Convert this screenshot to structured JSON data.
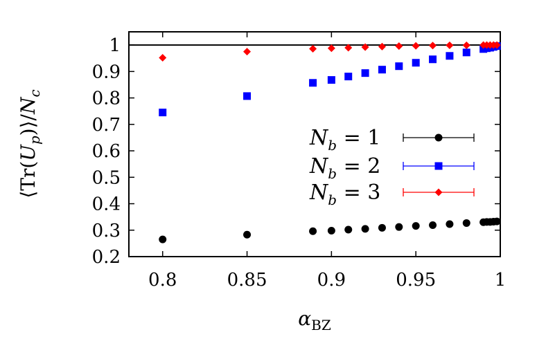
{
  "chart_data": {
    "type": "scatter",
    "xlabel": "α_BZ",
    "ylabel": "⟨Tr(U_p)⟩/N_c",
    "xlim": [
      0.78,
      1.0
    ],
    "ylim": [
      0.2,
      1.05
    ],
    "x_ticks": [
      "0.8",
      "0.85",
      "0.9",
      "0.95",
      "1"
    ],
    "y_ticks": [
      "0.2",
      "0.3",
      "0.4",
      "0.5",
      "0.6",
      "0.7",
      "0.8",
      "0.9",
      "1"
    ],
    "reference_line_y": 1.0,
    "grid": false,
    "legend_position": "center-right",
    "series": [
      {
        "name": "N_b = 1",
        "color": "#000000",
        "marker": "circle",
        "points": [
          [
            0.8,
            0.265
          ],
          [
            0.85,
            0.283
          ],
          [
            0.889,
            0.296
          ],
          [
            0.9,
            0.298
          ],
          [
            0.91,
            0.302
          ],
          [
            0.92,
            0.305
          ],
          [
            0.93,
            0.309
          ],
          [
            0.94,
            0.312
          ],
          [
            0.95,
            0.316
          ],
          [
            0.96,
            0.319
          ],
          [
            0.97,
            0.323
          ],
          [
            0.98,
            0.327
          ],
          [
            0.99,
            0.33
          ],
          [
            0.992,
            0.331
          ],
          [
            0.994,
            0.331
          ],
          [
            0.996,
            0.332
          ],
          [
            0.998,
            0.333
          ]
        ]
      },
      {
        "name": "N_b = 2",
        "color": "#0000ff",
        "marker": "square",
        "points": [
          [
            0.8,
            0.745
          ],
          [
            0.85,
            0.807
          ],
          [
            0.889,
            0.857
          ],
          [
            0.9,
            0.868
          ],
          [
            0.91,
            0.881
          ],
          [
            0.92,
            0.894
          ],
          [
            0.93,
            0.907
          ],
          [
            0.94,
            0.92
          ],
          [
            0.95,
            0.933
          ],
          [
            0.96,
            0.946
          ],
          [
            0.97,
            0.959
          ],
          [
            0.98,
            0.972
          ],
          [
            0.99,
            0.985
          ],
          [
            0.992,
            0.988
          ],
          [
            0.994,
            0.99
          ],
          [
            0.996,
            0.993
          ],
          [
            0.998,
            0.996
          ]
        ]
      },
      {
        "name": "N_b = 3",
        "color": "#ff0000",
        "marker": "diamond",
        "points": [
          [
            0.8,
            0.952
          ],
          [
            0.85,
            0.975
          ],
          [
            0.889,
            0.986
          ],
          [
            0.9,
            0.988
          ],
          [
            0.91,
            0.99
          ],
          [
            0.92,
            0.992
          ],
          [
            0.93,
            0.994
          ],
          [
            0.94,
            0.996
          ],
          [
            0.95,
            0.997
          ],
          [
            0.96,
            0.998
          ],
          [
            0.97,
            0.999
          ],
          [
            0.98,
            0.999
          ],
          [
            0.99,
            1.0
          ],
          [
            0.992,
            1.0
          ],
          [
            0.994,
            1.0
          ],
          [
            0.996,
            1.0
          ],
          [
            0.998,
            1.0
          ]
        ]
      }
    ],
    "legend": [
      {
        "label_main": "N",
        "label_sub": "b",
        "label_rest": " = 1"
      },
      {
        "label_main": "N",
        "label_sub": "b",
        "label_rest": " = 2"
      },
      {
        "label_main": "N",
        "label_sub": "b",
        "label_rest": " = 3"
      }
    ]
  }
}
